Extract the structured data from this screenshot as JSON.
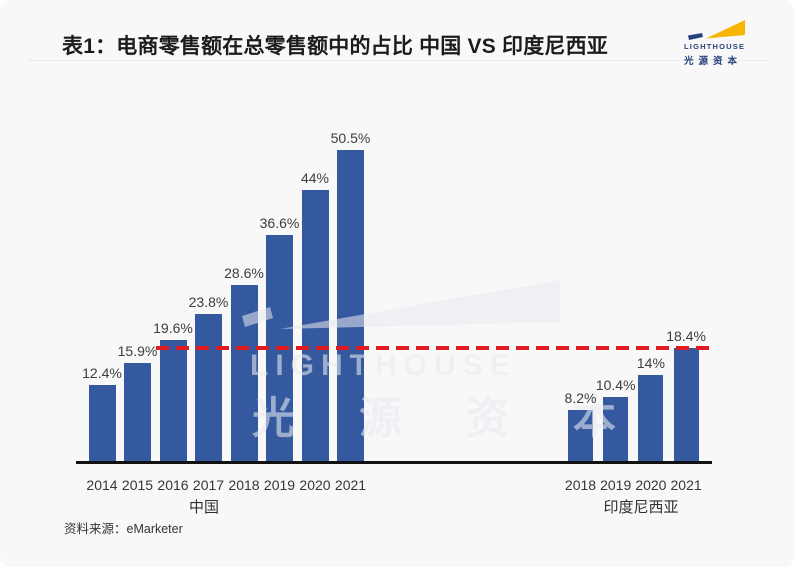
{
  "header": {
    "title": "表1：电商零售额在总零售额中的占比 中国 VS 印度尼西亚",
    "logo": {
      "wordmark": "LIGHTHOUSE",
      "cn_name": "光源资本",
      "navy": "#27417e",
      "yellow": "#f8b500"
    }
  },
  "chart_data": {
    "type": "bar",
    "title": "电商零售额在总零售额中的占比 中国 VS 印度尼西亚",
    "unit": "%",
    "ylim": [
      0,
      55
    ],
    "grid": false,
    "bar_color": "#35599e",
    "groups": [
      {
        "name": "中国",
        "categories": [
          "2014",
          "2015",
          "2016",
          "2017",
          "2018",
          "2019",
          "2020",
          "2021"
        ],
        "values": [
          12.4,
          15.9,
          19.6,
          23.8,
          28.6,
          36.6,
          44,
          50.5
        ],
        "labels": [
          "12.4%",
          "15.9%",
          "19.6%",
          "23.8%",
          "28.6%",
          "36.6%",
          "44%",
          "50.5%"
        ]
      },
      {
        "name": "印度尼西亚",
        "categories": [
          "2018",
          "2019",
          "2020",
          "2021"
        ],
        "values": [
          8.2,
          10.4,
          14,
          18.4
        ],
        "labels": [
          "8.2%",
          "10.4%",
          "14%",
          "18.4%"
        ]
      }
    ],
    "reference_line": {
      "value": 18.4,
      "style": "dashed",
      "color": "#e11b22",
      "note": "horizontal dashed comparison line across both groups"
    }
  },
  "watermark": {
    "line1": "LIGHTHOUSE",
    "line2": "光 源 资 本"
  },
  "footer": {
    "source": "资料来源：eMarketer"
  }
}
